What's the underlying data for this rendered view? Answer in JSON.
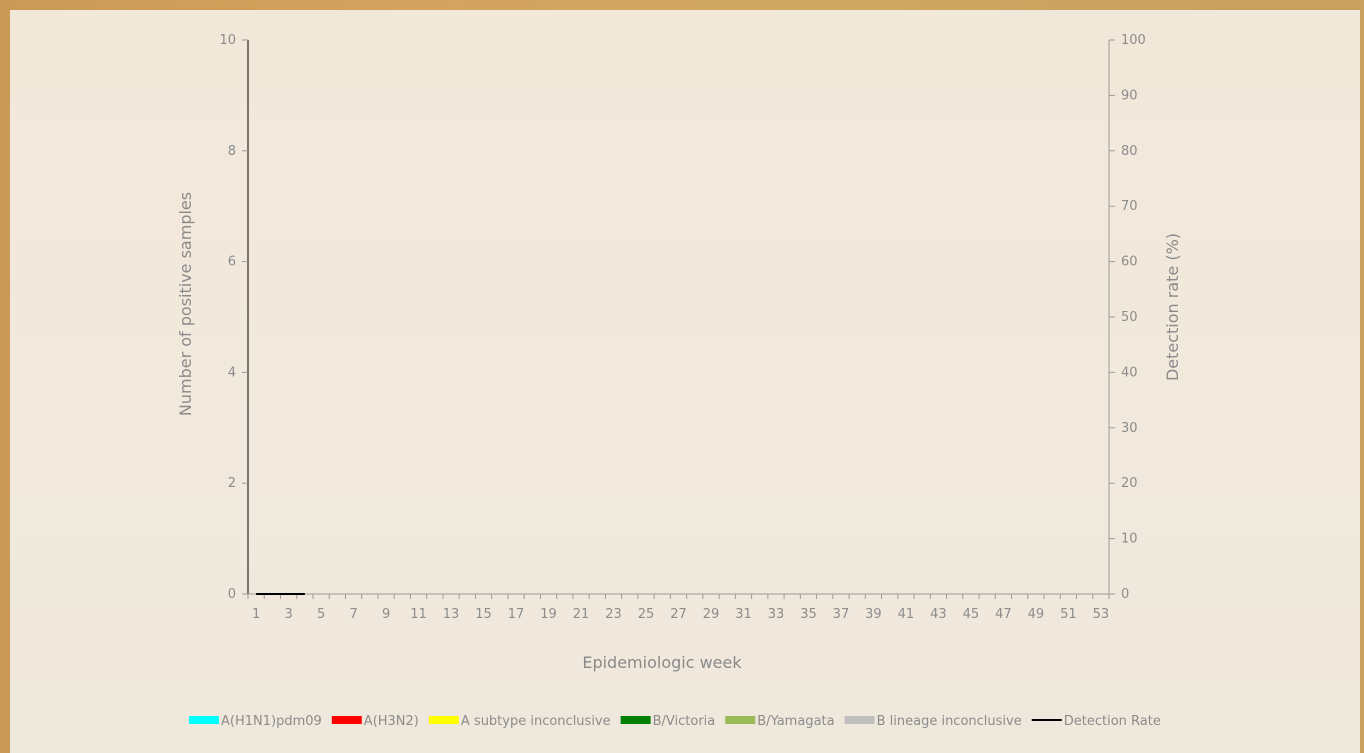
{
  "chart_data": {
    "type": "bar",
    "xlabel": "Epidemiologic week",
    "ylabel": "Number of positive samples",
    "y2label": "Detection rate (%)",
    "ylim": [
      0,
      10
    ],
    "y2lim": [
      0,
      100
    ],
    "y_ticks": [
      0,
      2,
      4,
      6,
      8,
      10
    ],
    "y2_ticks": [
      0,
      10,
      20,
      30,
      40,
      50,
      60,
      70,
      80,
      90,
      100
    ],
    "x_start": 1,
    "x_end": 53,
    "x_tick_labels": [
      "1",
      "3",
      "5",
      "7",
      "9",
      "11",
      "13",
      "15",
      "17",
      "19",
      "21",
      "23",
      "25",
      "27",
      "29",
      "31",
      "33",
      "35",
      "37",
      "39",
      "41",
      "43",
      "45",
      "47",
      "49",
      "51",
      "53"
    ],
    "legend_position": "bottom",
    "series": [
      {
        "name": "A(H1N1)pdm09",
        "kind": "bar",
        "color": "#00ffff",
        "values": [
          0,
          0,
          0,
          0
        ]
      },
      {
        "name": "A(H3N2)",
        "kind": "bar",
        "color": "#ff0000",
        "values": [
          0,
          0,
          0,
          0
        ]
      },
      {
        "name": "A subtype inconclusive",
        "kind": "bar",
        "color": "#ffff00",
        "values": [
          0,
          0,
          0,
          0
        ]
      },
      {
        "name": "B/Victoria",
        "kind": "bar",
        "color": "#008000",
        "values": [
          0,
          0,
          0,
          0
        ]
      },
      {
        "name": "B/Yamagata",
        "kind": "bar",
        "color": "#9bbb59",
        "values": [
          0,
          0,
          0,
          0
        ]
      },
      {
        "name": "B lineage inconclusive",
        "kind": "bar",
        "color": "#bfbfbf",
        "values": [
          0,
          0,
          0,
          0
        ]
      },
      {
        "name": "Detection Rate",
        "kind": "line",
        "axis": "y2",
        "color": "#000000",
        "x": [
          1,
          2,
          3,
          4
        ],
        "values": [
          0,
          0,
          0,
          0
        ]
      }
    ]
  }
}
